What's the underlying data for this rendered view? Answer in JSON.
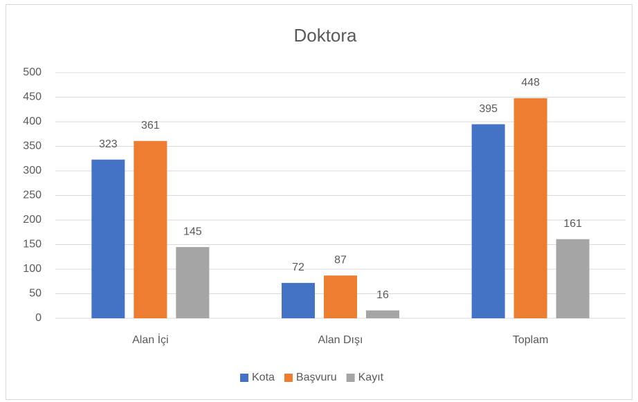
{
  "chart_data": {
    "type": "bar",
    "title": "Doktora",
    "categories": [
      "Alan İçi",
      "Alan Dışı",
      "Toplam"
    ],
    "series": [
      {
        "name": "Kota",
        "color": "#4472c4",
        "values": [
          323,
          72,
          395
        ]
      },
      {
        "name": "Başvuru",
        "color": "#ed7d31",
        "values": [
          361,
          87,
          448
        ]
      },
      {
        "name": "Kayıt",
        "color": "#a5a5a5",
        "values": [
          145,
          16,
          161
        ]
      }
    ],
    "ylim": [
      0,
      500
    ],
    "yticks": [
      0,
      50,
      100,
      150,
      200,
      250,
      300,
      350,
      400,
      450,
      500
    ],
    "grid": true,
    "legend": "bottom"
  }
}
